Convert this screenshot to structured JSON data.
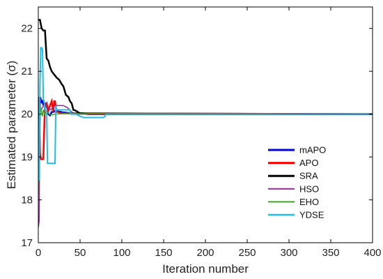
{
  "chart_data": {
    "type": "line",
    "xlabel": "Iteration number",
    "ylabel": "Estimated parameter (σ)",
    "xlim": [
      0,
      400
    ],
    "ylim": [
      17,
      22.5
    ],
    "xticks": [
      "0",
      "50",
      "100",
      "150",
      "200",
      "250",
      "300",
      "350",
      "400"
    ],
    "yticks": [
      "17",
      "18",
      "19",
      "20",
      "21",
      "22"
    ],
    "grid": false,
    "legend_position": "right",
    "series": [
      {
        "name": "mAPO",
        "color": "#0000e0",
        "width": 2.5,
        "x": [
          0,
          1,
          2,
          3,
          4,
          5,
          6,
          7,
          8,
          10,
          12,
          14,
          16,
          18,
          20,
          25,
          30,
          35,
          40,
          400
        ],
        "y": [
          19.2,
          18.9,
          20.3,
          20.35,
          20.28,
          20.3,
          20.22,
          20.26,
          20.2,
          20.25,
          20.0,
          19.97,
          20.05,
          20.05,
          20.07,
          20.06,
          20.04,
          20.03,
          20.02,
          20.0
        ]
      },
      {
        "name": "APO",
        "color": "#ff0000",
        "width": 2.5,
        "x": [
          0,
          1,
          2,
          3,
          4,
          6,
          8,
          10,
          12,
          14,
          16,
          18,
          19,
          20,
          22,
          24,
          26,
          30,
          400
        ],
        "y": [
          20.4,
          20.3,
          19.1,
          18.95,
          18.95,
          18.95,
          20.25,
          20.25,
          20.08,
          20.2,
          20.3,
          20.05,
          20.3,
          20.3,
          20.05,
          20.05,
          20.02,
          20.02,
          20.0
        ]
      },
      {
        "name": "SRA",
        "color": "#000000",
        "width": 2.5,
        "x": [
          0,
          2,
          4,
          6,
          8,
          10,
          12,
          14,
          16,
          18,
          20,
          22,
          25,
          28,
          30,
          33,
          36,
          38,
          40,
          42,
          45,
          48,
          50,
          60,
          400
        ],
        "y": [
          22.2,
          22.2,
          22.0,
          21.95,
          21.95,
          21.3,
          21.25,
          21.1,
          21.0,
          20.95,
          20.9,
          20.85,
          20.8,
          20.7,
          20.65,
          20.45,
          20.4,
          20.3,
          20.25,
          20.1,
          20.08,
          20.04,
          20.02,
          20.0,
          20.0
        ]
      },
      {
        "name": "HSO",
        "color": "#8b2c8f",
        "width": 1.5,
        "x": [
          0,
          1,
          2,
          3,
          4,
          5,
          6,
          8,
          10,
          15,
          20,
          25,
          30,
          35,
          40,
          45,
          400
        ],
        "y": [
          17.35,
          17.5,
          20.15,
          20.1,
          20.12,
          20.15,
          20.2,
          20.18,
          20.15,
          20.1,
          20.2,
          20.2,
          20.2,
          20.15,
          20.05,
          20.0,
          20.0
        ]
      },
      {
        "name": "EHO",
        "color": "#3aaa1f",
        "width": 1.5,
        "x": [
          0,
          0.5,
          1,
          1.5,
          2,
          3,
          4,
          5,
          6,
          8,
          10,
          15,
          20,
          30,
          400
        ],
        "y": [
          17.6,
          18.5,
          19.6,
          20.1,
          19.9,
          20.15,
          20.05,
          19.95,
          20.1,
          20.0,
          20.05,
          19.98,
          20.0,
          20.01,
          20.0
        ]
      },
      {
        "name": "YDSE",
        "color": "#1fbde8",
        "width": 2.0,
        "x": [
          0,
          1,
          2,
          3,
          4,
          5,
          6,
          7,
          8,
          10,
          11,
          12,
          15,
          20,
          21,
          22,
          25,
          30,
          38,
          39,
          45,
          50,
          55,
          60,
          70,
          78,
          80,
          81,
          400
        ],
        "y": [
          19.25,
          18.45,
          20.7,
          21.55,
          21.55,
          21.5,
          20.35,
          20.3,
          20.1,
          20.1,
          18.85,
          18.85,
          18.85,
          18.85,
          20.2,
          20.1,
          20.1,
          20.1,
          20.1,
          20.0,
          20.0,
          19.95,
          19.92,
          19.92,
          19.92,
          19.92,
          19.95,
          20.0,
          20.0
        ]
      }
    ]
  }
}
